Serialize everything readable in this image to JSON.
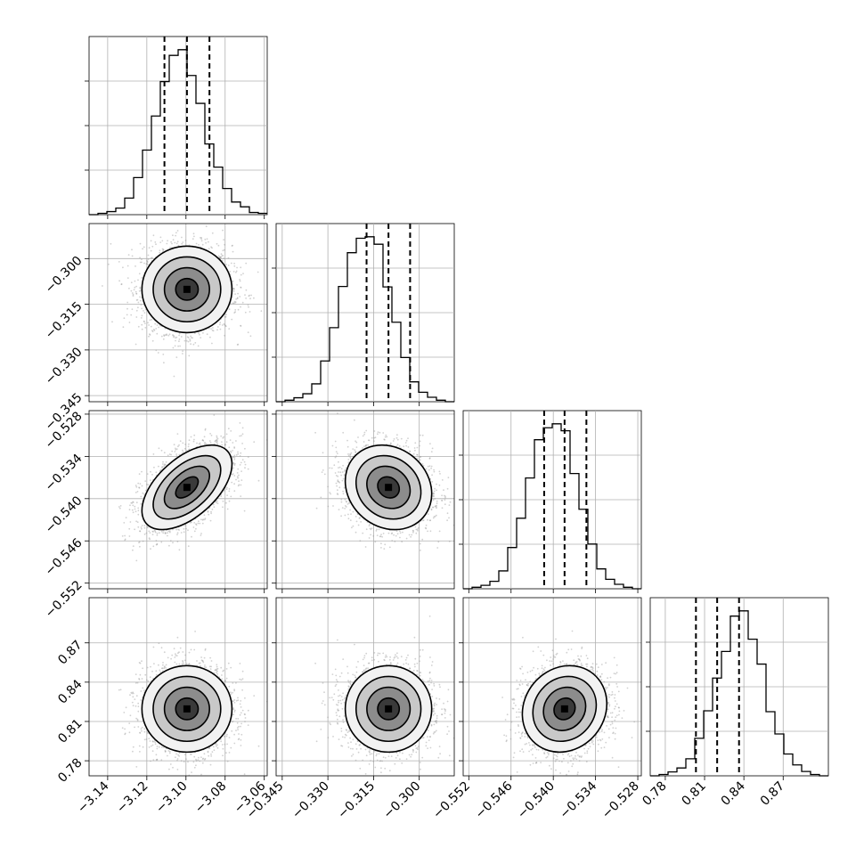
{
  "chart_data": {
    "type": "corner",
    "parameters": [
      {
        "ticks": [
          -3.14,
          -3.12,
          -3.1,
          -3.08,
          -3.06
        ],
        "tick_labels": [
          "−3.14",
          "−3.12",
          "−3.10",
          "−3.08",
          "−3.06"
        ],
        "range": [
          -3.1495,
          -3.0585
        ],
        "quantiles": [
          -3.111,
          -3.0995,
          -3.088
        ],
        "histogram": [
          0.0,
          0.3,
          0.7,
          1.5,
          3.8,
          8.5,
          14.8,
          22.6,
          30.5,
          36.5,
          37.8,
          31.9,
          25.5,
          16.2,
          10.9,
          6.0,
          2.9,
          1.8,
          0.5,
          0.3
        ]
      },
      {
        "ticks": [
          -0.345,
          -0.33,
          -0.315,
          -0.3
        ],
        "tick_labels": [
          "−0.345",
          "−0.330",
          "−0.315",
          "−0.300"
        ],
        "range": [
          -0.347,
          -0.2885
        ],
        "quantiles": [
          -0.3173,
          -0.3101,
          -0.303
        ],
        "histogram": [
          0.0,
          0.3,
          0.8,
          1.6,
          3.6,
          8.2,
          14.9,
          23.2,
          30.0,
          32.9,
          33.2,
          31.7,
          23.1,
          16.0,
          8.9,
          4.0,
          1.9,
          0.9,
          0.3,
          0.0
        ]
      },
      {
        "ticks": [
          -0.552,
          -0.546,
          -0.54,
          -0.534,
          -0.528
        ],
        "tick_labels": [
          "−0.552",
          "−0.546",
          "−0.540",
          "−0.534",
          "−0.528"
        ],
        "range": [
          -0.5528,
          -0.5275
        ],
        "quantiles": [
          -0.5413,
          -0.5384,
          -0.5353
        ],
        "histogram": [
          0.0,
          0.3,
          0.7,
          1.5,
          3.6,
          8.3,
          14.2,
          22.3,
          30.0,
          32.4,
          33.2,
          31.8,
          23.2,
          16.0,
          9.0,
          4.0,
          1.9,
          0.9,
          0.3,
          0.0
        ]
      },
      {
        "ticks": [
          0.78,
          0.81,
          0.84,
          0.87
        ],
        "tick_labels": [
          "0.78",
          "0.81",
          "0.84",
          "0.87"
        ],
        "range": [
          0.7685,
          0.9045
        ],
        "quantiles": [
          0.8034,
          0.8196,
          0.8363
        ],
        "histogram": [
          0.0,
          0.3,
          0.9,
          1.8,
          3.9,
          8.6,
          14.9,
          22.4,
          28.5,
          36.6,
          37.8,
          31.3,
          25.6,
          14.7,
          9.6,
          5.0,
          2.5,
          1.0,
          0.3,
          0.0
        ]
      }
    ],
    "pairs": [
      {
        "x": 0,
        "y": 1,
        "center": [
          -3.0995,
          -0.3101
        ],
        "sigma": [
          0.0115,
          0.0071
        ],
        "rho": 0.0
      },
      {
        "x": 0,
        "y": 2,
        "center": [
          -3.0995,
          -0.5384
        ],
        "sigma": [
          0.0115,
          0.003
        ],
        "rho": 0.55
      },
      {
        "x": 1,
        "y": 2,
        "center": [
          -0.3101,
          -0.5384
        ],
        "sigma": [
          0.0071,
          0.003
        ],
        "rho": -0.15
      },
      {
        "x": 0,
        "y": 3,
        "center": [
          -3.0995,
          0.8196
        ],
        "sigma": [
          0.0115,
          0.0165
        ],
        "rho": 0.0
      },
      {
        "x": 1,
        "y": 3,
        "center": [
          -0.3101,
          0.8196
        ],
        "sigma": [
          0.0071,
          0.0165
        ],
        "rho": 0.0
      },
      {
        "x": 2,
        "y": 3,
        "center": [
          -0.5384,
          0.8196
        ],
        "sigma": [
          0.003,
          0.0165
        ],
        "rho": 0.12
      }
    ],
    "contour_levels_sigma": [
      0.5,
      1.0,
      1.5,
      2.0
    ],
    "grid": true
  },
  "colors": {
    "line": "#000000",
    "grid": "#b0b0b0",
    "points": "#9a9a9a",
    "background": "#ffffff"
  }
}
